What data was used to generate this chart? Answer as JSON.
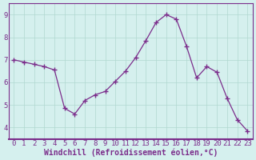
{
  "x": [
    0,
    1,
    2,
    3,
    4,
    5,
    6,
    7,
    8,
    9,
    10,
    11,
    12,
    13,
    14,
    15,
    16,
    17,
    18,
    19,
    20,
    21,
    22,
    23
  ],
  "y": [
    7.0,
    6.9,
    6.8,
    6.7,
    6.55,
    4.85,
    4.6,
    5.2,
    5.45,
    5.6,
    6.05,
    6.5,
    7.1,
    7.85,
    8.65,
    9.0,
    8.8,
    7.6,
    6.2,
    6.7,
    6.45,
    5.3,
    4.35,
    3.85
  ],
  "line_color": "#7B2D8B",
  "marker": "+",
  "marker_size": 4,
  "bg_color": "#d5f0ee",
  "grid_color": "#b0d8d0",
  "axis_color": "#7B2D8B",
  "xlabel": "Windchill (Refroidissement éolien,°C)",
  "ylim": [
    3.5,
    9.5
  ],
  "xlim": [
    -0.5,
    23.5
  ],
  "yticks": [
    4,
    5,
    6,
    7,
    8,
    9
  ],
  "xticks": [
    0,
    1,
    2,
    3,
    4,
    5,
    6,
    7,
    8,
    9,
    10,
    11,
    12,
    13,
    14,
    15,
    16,
    17,
    18,
    19,
    20,
    21,
    22,
    23
  ],
  "font_family": "monospace",
  "label_fontsize": 7,
  "tick_fontsize": 6.5
}
